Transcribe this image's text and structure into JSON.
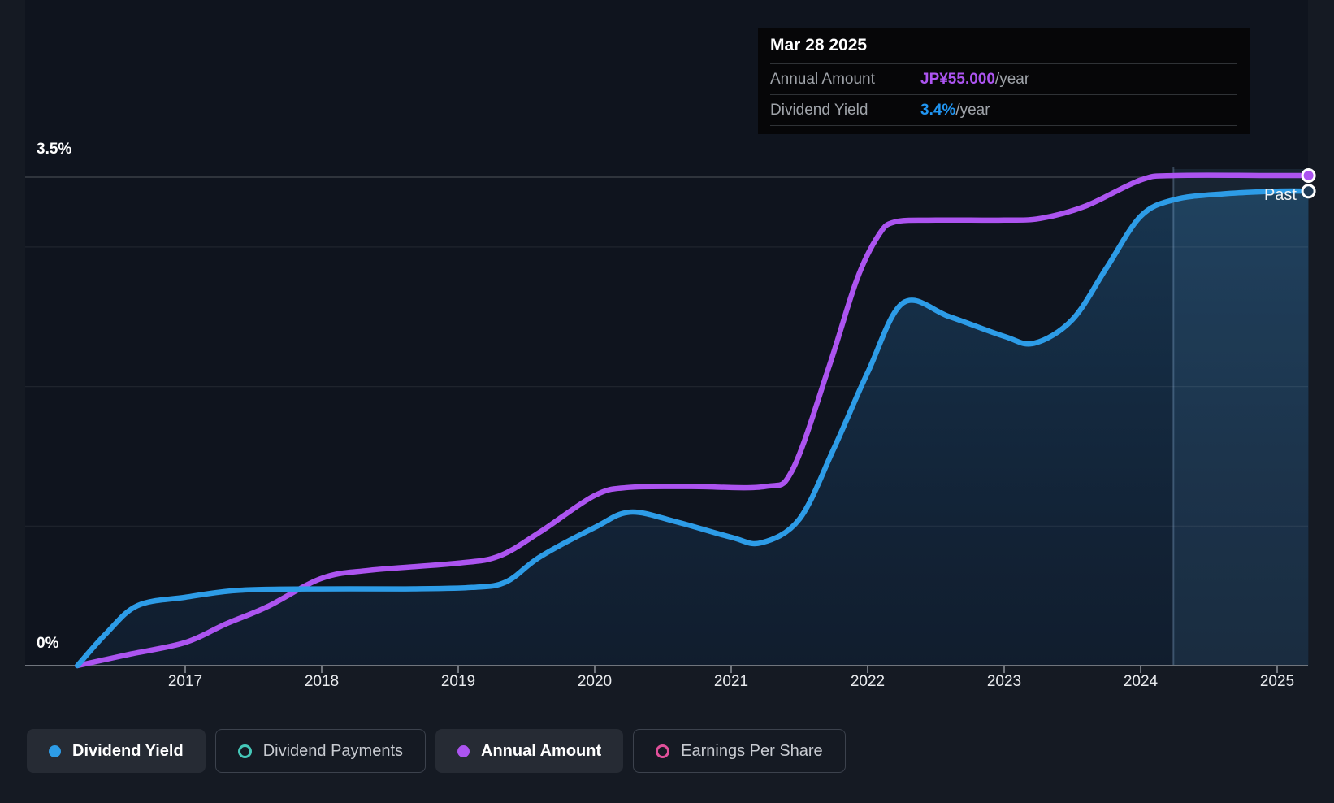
{
  "tooltip": {
    "date": "Mar 28 2025",
    "rows": [
      {
        "label": "Annual Amount",
        "value": "JP¥55.000",
        "suffix": "/year",
        "color": "#AC54F0"
      },
      {
        "label": "Dividend Yield",
        "value": "3.4%",
        "suffix": "/year",
        "color": "#2196F3"
      }
    ]
  },
  "y_axis": {
    "top_label": "3.5%",
    "bottom_label": "0%"
  },
  "x_axis": {
    "years": [
      "2017",
      "2018",
      "2019",
      "2020",
      "2021",
      "2022",
      "2023",
      "2024",
      "2025"
    ]
  },
  "past_label": "Past",
  "legend": [
    {
      "label": "Dividend Yield",
      "color": "#2D9CE7",
      "style": "filled",
      "state": "active"
    },
    {
      "label": "Dividend Payments",
      "color": "#45C8B9",
      "style": "ring",
      "state": "inactive"
    },
    {
      "label": "Annual Amount",
      "color": "#AC54F0",
      "style": "filled",
      "state": "active"
    },
    {
      "label": "Earnings Per Share",
      "color": "#E0509A",
      "style": "ring",
      "state": "inactive"
    }
  ],
  "colors": {
    "yield_line": "#2D9CE7",
    "amount_line": "#AC54F0",
    "page_bg": "#151A23",
    "plot_bg": "#0F141E"
  },
  "chart_data": {
    "type": "line",
    "x_ticks": [
      2017,
      2018,
      2019,
      2020,
      2021,
      2022,
      2023,
      2024,
      2025
    ],
    "x_range": [
      2016.21,
      2025.23
    ],
    "past_divider_t": 2024.24,
    "yield_axis": {
      "min": 0,
      "max": 3.5,
      "unit": "%",
      "gridlines": [
        {
          "v": 3.5,
          "strong": true
        },
        {
          "v": 3
        },
        {
          "v": 2
        },
        {
          "v": 1
        },
        {
          "v": 0,
          "axis": true
        }
      ]
    },
    "amount_axis": {
      "min": 0,
      "max_marked": 55,
      "unit": "JP¥"
    },
    "series": [
      {
        "name": "Dividend Yield",
        "unit": "%",
        "axis": "yield",
        "color": "#2D9CE7",
        "area_fill": true,
        "end_marker": {
          "t": 2025.23,
          "v": 3.4
        },
        "points": [
          [
            2016.21,
            0
          ],
          [
            2016.42,
            0.23
          ],
          [
            2016.65,
            0.43
          ],
          [
            2017.0,
            0.49
          ],
          [
            2017.4,
            0.54
          ],
          [
            2018.0,
            0.55
          ],
          [
            2018.6,
            0.55
          ],
          [
            2019.1,
            0.56
          ],
          [
            2019.35,
            0.6
          ],
          [
            2019.6,
            0.78
          ],
          [
            2020.0,
            0.99
          ],
          [
            2020.26,
            1.1
          ],
          [
            2020.6,
            1.03
          ],
          [
            2021.0,
            0.92
          ],
          [
            2021.22,
            0.88
          ],
          [
            2021.5,
            1.05
          ],
          [
            2021.75,
            1.55
          ],
          [
            2022.0,
            2.1
          ],
          [
            2022.26,
            2.6
          ],
          [
            2022.6,
            2.5
          ],
          [
            2023.0,
            2.36
          ],
          [
            2023.22,
            2.31
          ],
          [
            2023.5,
            2.48
          ],
          [
            2023.75,
            2.85
          ],
          [
            2024.0,
            3.22
          ],
          [
            2024.25,
            3.34
          ],
          [
            2024.6,
            3.38
          ],
          [
            2025.0,
            3.4
          ],
          [
            2025.23,
            3.4
          ]
        ]
      },
      {
        "name": "Annual Amount",
        "unit": "JP¥/year",
        "axis": "amount",
        "color": "#AC54F0",
        "end_marker": {
          "t": 2025.23,
          "v": 55
        },
        "points": [
          [
            2016.21,
            0
          ],
          [
            2016.6,
            1.3
          ],
          [
            2017.0,
            2.6
          ],
          [
            2017.3,
            4.7
          ],
          [
            2017.6,
            6.6
          ],
          [
            2018.0,
            9.8
          ],
          [
            2018.35,
            10.7
          ],
          [
            2019.0,
            11.5
          ],
          [
            2019.3,
            12.3
          ],
          [
            2019.6,
            15.0
          ],
          [
            2020.0,
            19.1
          ],
          [
            2020.25,
            20.0
          ],
          [
            2020.7,
            20.1
          ],
          [
            2021.25,
            20.1
          ],
          [
            2021.45,
            22.0
          ],
          [
            2021.72,
            33.7
          ],
          [
            2021.92,
            43.3
          ],
          [
            2022.08,
            48.3
          ],
          [
            2022.2,
            49.8
          ],
          [
            2022.5,
            50.0
          ],
          [
            2023.0,
            50.0
          ],
          [
            2023.27,
            50.2
          ],
          [
            2023.6,
            51.6
          ],
          [
            2024.0,
            54.5
          ],
          [
            2024.25,
            55.0
          ],
          [
            2025.0,
            55.0
          ],
          [
            2025.23,
            55.0
          ]
        ]
      }
    ]
  }
}
